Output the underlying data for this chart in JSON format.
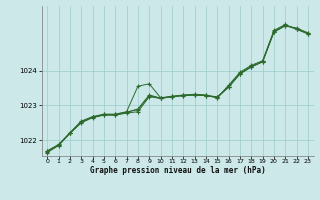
{
  "title": "Graphe pression niveau de la mer (hPa)",
  "bg_color": "#cce8e8",
  "grid_color": "#99cccc",
  "line_color": "#2d6b2d",
  "xlim": [
    -0.5,
    23.5
  ],
  "ylim": [
    1021.55,
    1025.85
  ],
  "yticks": [
    1022,
    1023,
    1024
  ],
  "xticks": [
    0,
    1,
    2,
    3,
    4,
    5,
    6,
    7,
    8,
    9,
    10,
    11,
    12,
    13,
    14,
    15,
    16,
    17,
    18,
    19,
    20,
    21,
    22,
    23
  ],
  "series": [
    [
      1021.65,
      1021.85,
      1022.2,
      1022.5,
      1022.65,
      1022.72,
      1022.72,
      1022.78,
      1022.82,
      1023.25,
      1023.2,
      1023.25,
      1023.28,
      1023.3,
      1023.28,
      1023.25,
      1023.52,
      1023.9,
      1024.1,
      1024.25,
      1025.1,
      1025.28,
      1025.22,
      1025.08
    ],
    [
      1021.7,
      1021.88,
      1022.22,
      1022.55,
      1022.68,
      1022.75,
      1022.75,
      1022.82,
      1023.55,
      1023.62,
      1023.22,
      1023.26,
      1023.3,
      1023.32,
      1023.3,
      1023.22,
      1023.58,
      1023.95,
      1024.15,
      1024.28,
      1025.15,
      1025.32,
      1025.18,
      1025.05
    ],
    [
      1021.68,
      1021.86,
      1022.21,
      1022.53,
      1022.67,
      1022.73,
      1022.73,
      1022.8,
      1022.9,
      1023.3,
      1023.21,
      1023.26,
      1023.29,
      1023.31,
      1023.29,
      1023.23,
      1023.54,
      1023.92,
      1024.12,
      1024.26,
      1025.12,
      1025.3,
      1025.2,
      1025.07
    ],
    [
      1021.67,
      1021.87,
      1022.2,
      1022.52,
      1022.66,
      1022.74,
      1022.74,
      1022.81,
      1022.88,
      1023.28,
      1023.2,
      1023.25,
      1023.28,
      1023.3,
      1023.28,
      1023.22,
      1023.53,
      1023.91,
      1024.11,
      1024.25,
      1025.11,
      1025.29,
      1025.19,
      1025.06
    ]
  ]
}
